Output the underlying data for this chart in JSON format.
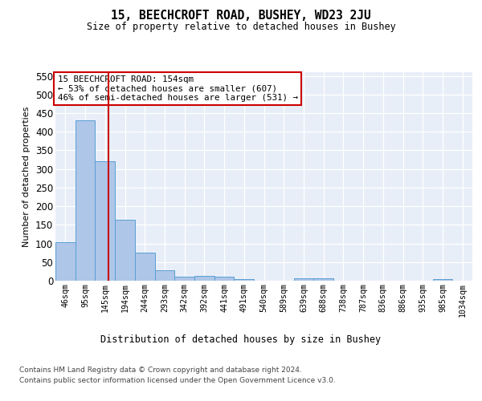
{
  "title": "15, BEECHCROFT ROAD, BUSHEY, WD23 2JU",
  "subtitle": "Size of property relative to detached houses in Bushey",
  "xlabel": "Distribution of detached houses by size in Bushey",
  "ylabel": "Number of detached properties",
  "footnote1": "Contains HM Land Registry data © Crown copyright and database right 2024.",
  "footnote2": "Contains public sector information licensed under the Open Government Licence v3.0.",
  "annotation_title": "15 BEECHCROFT ROAD: 154sqm",
  "annotation_line1": "← 53% of detached houses are smaller (607)",
  "annotation_line2": "46% of semi-detached houses are larger (531) →",
  "bar_color": "#aec6e8",
  "bar_edge_color": "#5a9fd4",
  "bg_color": "#e8eef8",
  "red_line_color": "#cc0000",
  "annotation_box_color": "#ffffff",
  "annotation_box_edge": "#cc0000",
  "categories": [
    "46sqm",
    "95sqm",
    "145sqm",
    "194sqm",
    "244sqm",
    "293sqm",
    "342sqm",
    "392sqm",
    "441sqm",
    "491sqm",
    "540sqm",
    "589sqm",
    "639sqm",
    "688sqm",
    "738sqm",
    "787sqm",
    "836sqm",
    "886sqm",
    "935sqm",
    "985sqm",
    "1034sqm"
  ],
  "values": [
    103,
    430,
    320,
    163,
    75,
    27,
    11,
    13,
    10,
    5,
    0,
    0,
    6,
    6,
    0,
    0,
    0,
    0,
    0,
    5,
    0
  ],
  "ylim": [
    0,
    560
  ],
  "yticks": [
    0,
    50,
    100,
    150,
    200,
    250,
    300,
    350,
    400,
    450,
    500,
    550
  ],
  "red_line_x": 2.18,
  "property_size": 154
}
